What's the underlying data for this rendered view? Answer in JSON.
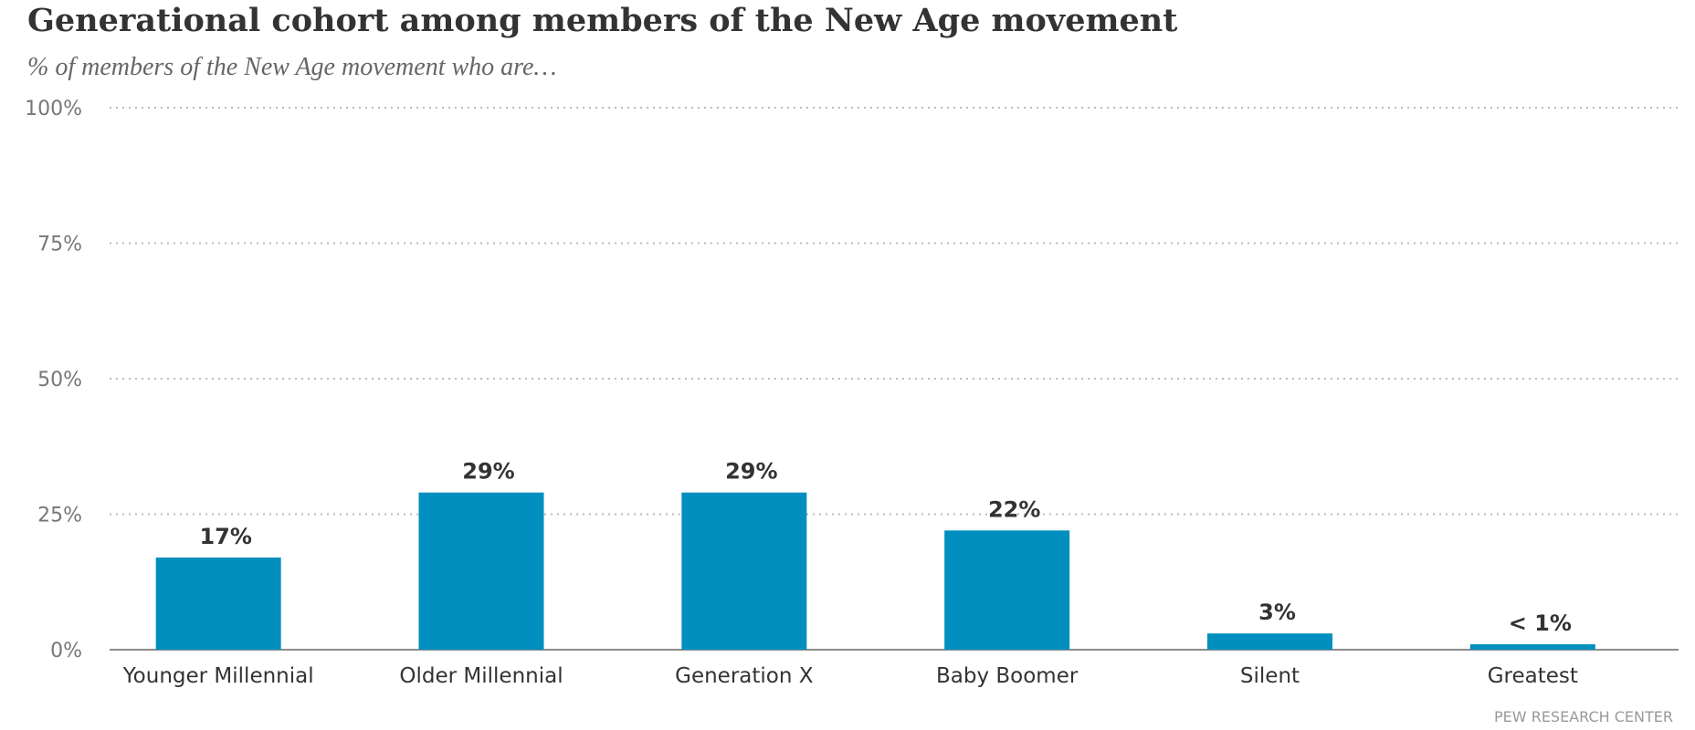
{
  "chart_data": {
    "type": "bar",
    "title": "Generational cohort among members of the New Age movement",
    "subtitle": "% of members of the New Age movement who are…",
    "categories": [
      "Younger Millennial",
      "Older Millennial",
      "Generation X",
      "Baby Boomer",
      "Silent",
      "Greatest"
    ],
    "values": [
      17,
      29,
      29,
      22,
      3,
      1
    ],
    "data_labels": [
      "17%",
      "29%",
      "29%",
      "22%",
      "3%",
      "< 1%"
    ],
    "ylim": [
      0,
      100
    ],
    "yticks": [
      0,
      25,
      50,
      75,
      100
    ],
    "ytick_labels": [
      "0%",
      "25%",
      "50%",
      "75%",
      "100%"
    ],
    "xlabel": "",
    "ylabel": "",
    "grid": true,
    "bar_color": "#008FBE",
    "source": "PEW RESEARCH CENTER"
  }
}
